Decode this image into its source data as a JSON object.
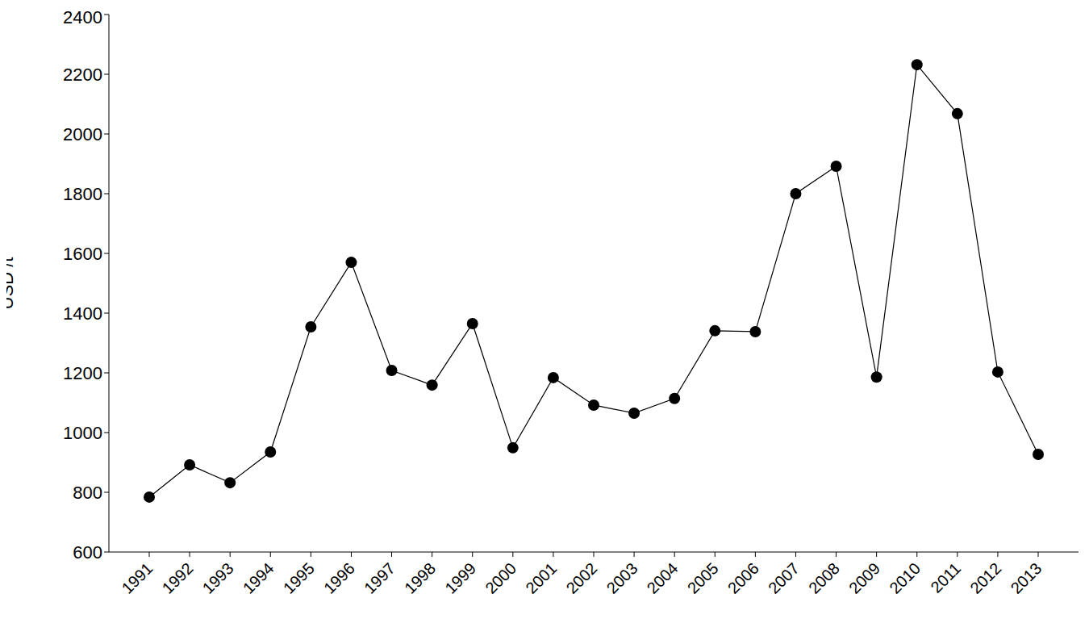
{
  "chart_data": {
    "type": "line",
    "y_label": "USD /t",
    "categories": [
      "1991",
      "1992",
      "1993",
      "1994",
      "1995",
      "1996",
      "1997",
      "1998",
      "1999",
      "2000",
      "2001",
      "2002",
      "2003",
      "2004",
      "2005",
      "2006",
      "2007",
      "2008",
      "2009",
      "2010",
      "2011",
      "2012",
      "2013"
    ],
    "values": [
      784,
      892,
      832,
      935,
      1354,
      1570,
      1208,
      1159,
      1365,
      949,
      1184,
      1092,
      1065,
      1114,
      1341,
      1338,
      1800,
      1892,
      1186,
      2232,
      2068,
      1203,
      927
    ],
    "color": "#000000",
    "marker": "circle",
    "line_style": "solid",
    "ylim": [
      600,
      2400
    ],
    "yticks": [
      600,
      800,
      1000,
      1200,
      1400,
      1600,
      1800,
      2000,
      2200,
      2400
    ],
    "grid": false
  }
}
